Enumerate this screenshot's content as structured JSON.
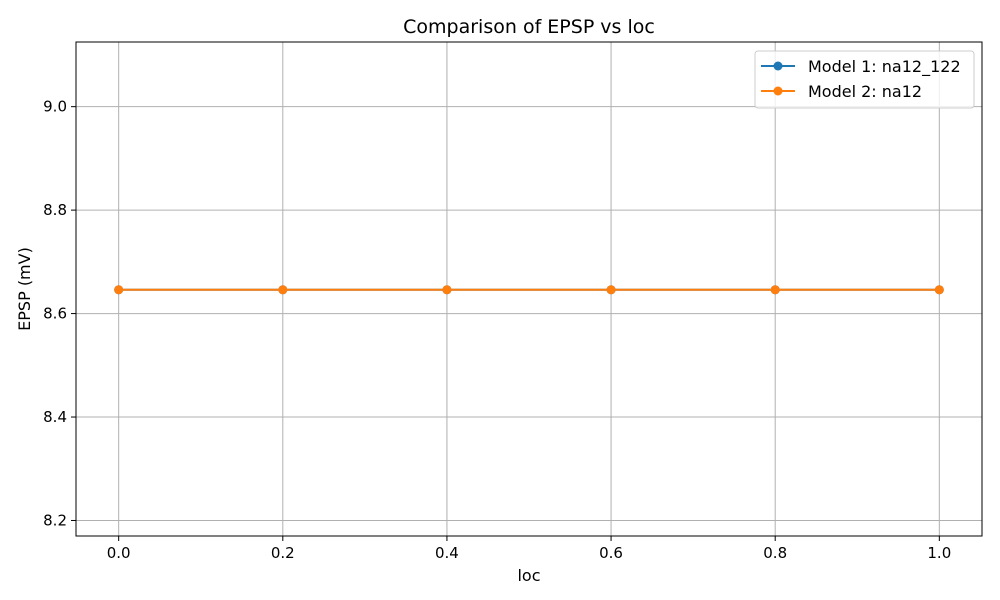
{
  "chart_data": {
    "type": "line",
    "title": "Comparison of EPSP vs loc",
    "xlabel": "loc",
    "ylabel": "EPSP (mV)",
    "xlim": [
      -0.052,
      1.052
    ],
    "ylim": [
      8.17,
      9.125
    ],
    "xticks": [
      0.0,
      0.2,
      0.4,
      0.6,
      0.8,
      1.0
    ],
    "xtick_labels": [
      "0.0",
      "0.2",
      "0.4",
      "0.6",
      "0.8",
      "1.0"
    ],
    "yticks": [
      8.2,
      8.4,
      8.6,
      8.8,
      9.0
    ],
    "ytick_labels": [
      "8.2",
      "8.4",
      "8.6",
      "8.8",
      "9.0"
    ],
    "grid": true,
    "legend_position": "top-right",
    "series": [
      {
        "name": "Model 1: na12_122",
        "color": "#1f77b4",
        "marker": "circle",
        "x": [
          0.0,
          0.2,
          0.4,
          0.6,
          0.8,
          1.0
        ],
        "y": [
          8.646,
          8.646,
          8.646,
          8.646,
          8.646,
          8.646
        ]
      },
      {
        "name": "Model 2: na12",
        "color": "#ff7f0e",
        "marker": "circle",
        "x": [
          0.0,
          0.2,
          0.4,
          0.6,
          0.8,
          1.0
        ],
        "y": [
          8.646,
          8.646,
          8.646,
          8.646,
          8.646,
          8.646
        ]
      }
    ]
  }
}
